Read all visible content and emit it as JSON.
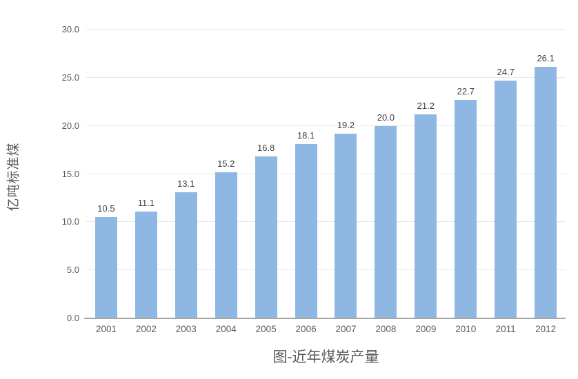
{
  "chart_data": {
    "type": "bar",
    "categories": [
      "2001",
      "2002",
      "2003",
      "2004",
      "2005",
      "2006",
      "2007",
      "2008",
      "2009",
      "2010",
      "2011",
      "2012"
    ],
    "values": [
      10.5,
      11.1,
      13.1,
      15.2,
      16.8,
      18.1,
      19.2,
      20.0,
      21.2,
      22.7,
      24.7,
      26.1
    ],
    "value_labels": [
      "10.5",
      "11.1",
      "13.1",
      "15.2",
      "16.8",
      "18.1",
      "19.2",
      "20.0",
      "21.2",
      "22.7",
      "24.7",
      "26.1"
    ],
    "title": "图-近年煤炭产量",
    "xlabel": "",
    "ylabel": "亿吨标准煤",
    "ylim": [
      0,
      30
    ],
    "ytick_step": 5,
    "ytick_labels": [
      "0.0",
      "5.0",
      "10.0",
      "15.0",
      "20.0",
      "25.0",
      "30.0"
    ],
    "grid": true,
    "legend": "none",
    "colors": {
      "bar": "#8eb8e3",
      "gridline": "#e8e8e8",
      "axis_line": "#a6a6a6",
      "tick_text": "#595959",
      "value_label_text": "#404040",
      "title_text": "#595959",
      "background": "#ffffff"
    }
  }
}
